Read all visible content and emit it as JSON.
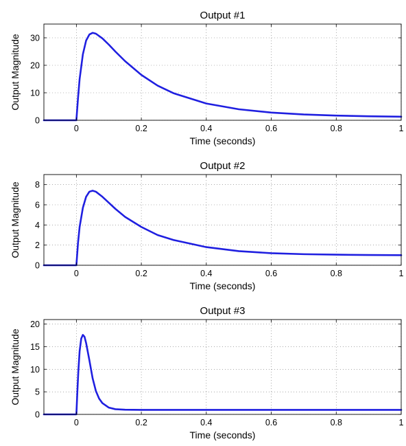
{
  "chart_data": [
    {
      "type": "line",
      "title": "Output #1",
      "xlabel": "Time (seconds)",
      "ylabel": "Output Magnitude",
      "xlim": [
        -0.1,
        1.0
      ],
      "ylim": [
        0,
        35
      ],
      "xticks": [
        0,
        0.2,
        0.4,
        0.6,
        0.8,
        1
      ],
      "xtick_labels": [
        "0",
        "0.2",
        "0.4",
        "0.6",
        "0.8",
        "1"
      ],
      "yticks": [
        0,
        10,
        20,
        30
      ],
      "ytick_labels": [
        "0",
        "10",
        "20",
        "30"
      ],
      "grid": true,
      "color": "#1f1fe0",
      "series": [
        {
          "x": [
            -0.1,
            0,
            0.005,
            0.01,
            0.02,
            0.03,
            0.04,
            0.05,
            0.06,
            0.08,
            0.1,
            0.12,
            0.15,
            0.2,
            0.25,
            0.3,
            0.4,
            0.5,
            0.6,
            0.7,
            0.8,
            0.9,
            1.0
          ],
          "y": [
            0,
            0,
            8,
            15,
            24,
            29,
            31.2,
            31.8,
            31.5,
            29.8,
            27.5,
            25,
            21.5,
            16.5,
            12.6,
            9.8,
            6.1,
            4.0,
            2.8,
            2.1,
            1.7,
            1.45,
            1.3
          ]
        }
      ]
    },
    {
      "type": "line",
      "title": "Output #2",
      "xlabel": "Time (seconds)",
      "ylabel": "Output Magnitude",
      "xlim": [
        -0.1,
        1.0
      ],
      "ylim": [
        0,
        9
      ],
      "xticks": [
        0,
        0.2,
        0.4,
        0.6,
        0.8,
        1
      ],
      "xtick_labels": [
        "0",
        "0.2",
        "0.4",
        "0.6",
        "0.8",
        "1"
      ],
      "yticks": [
        0,
        2,
        4,
        6,
        8
      ],
      "ytick_labels": [
        "0",
        "2",
        "4",
        "6",
        "8"
      ],
      "grid": true,
      "color": "#1f1fe0",
      "series": [
        {
          "x": [
            -0.1,
            0,
            0.005,
            0.01,
            0.02,
            0.03,
            0.04,
            0.05,
            0.06,
            0.08,
            0.1,
            0.12,
            0.15,
            0.2,
            0.25,
            0.3,
            0.4,
            0.5,
            0.6,
            0.7,
            0.8,
            0.9,
            1.0
          ],
          "y": [
            0,
            0,
            2.2,
            3.8,
            5.7,
            6.8,
            7.3,
            7.4,
            7.3,
            6.8,
            6.2,
            5.6,
            4.8,
            3.8,
            3.0,
            2.5,
            1.8,
            1.4,
            1.2,
            1.1,
            1.05,
            1.02,
            1.0
          ]
        }
      ]
    },
    {
      "type": "line",
      "title": "Output #3",
      "xlabel": "Time (seconds)",
      "ylabel": "Output Magnitude",
      "xlim": [
        -0.1,
        1.0
      ],
      "ylim": [
        0,
        21
      ],
      "xticks": [
        0,
        0.2,
        0.4,
        0.6,
        0.8,
        1
      ],
      "xtick_labels": [
        "0",
        "0.2",
        "0.4",
        "0.6",
        "0.8",
        "1"
      ],
      "yticks": [
        0,
        5,
        10,
        15,
        20
      ],
      "ytick_labels": [
        "0",
        "5",
        "10",
        "15",
        "20"
      ],
      "grid": true,
      "color": "#1f1fe0",
      "series": [
        {
          "x": [
            -0.1,
            0,
            0.003,
            0.006,
            0.01,
            0.015,
            0.02,
            0.025,
            0.03,
            0.04,
            0.05,
            0.06,
            0.07,
            0.08,
            0.1,
            0.12,
            0.15,
            0.2,
            0.3,
            0.5,
            1.0
          ],
          "y": [
            0,
            0,
            5,
            9.5,
            14,
            16.8,
            17.6,
            17.2,
            15.8,
            12,
            8,
            5.2,
            3.5,
            2.5,
            1.5,
            1.15,
            1.03,
            1.0,
            1.0,
            1.0,
            1.0
          ]
        }
      ]
    }
  ]
}
